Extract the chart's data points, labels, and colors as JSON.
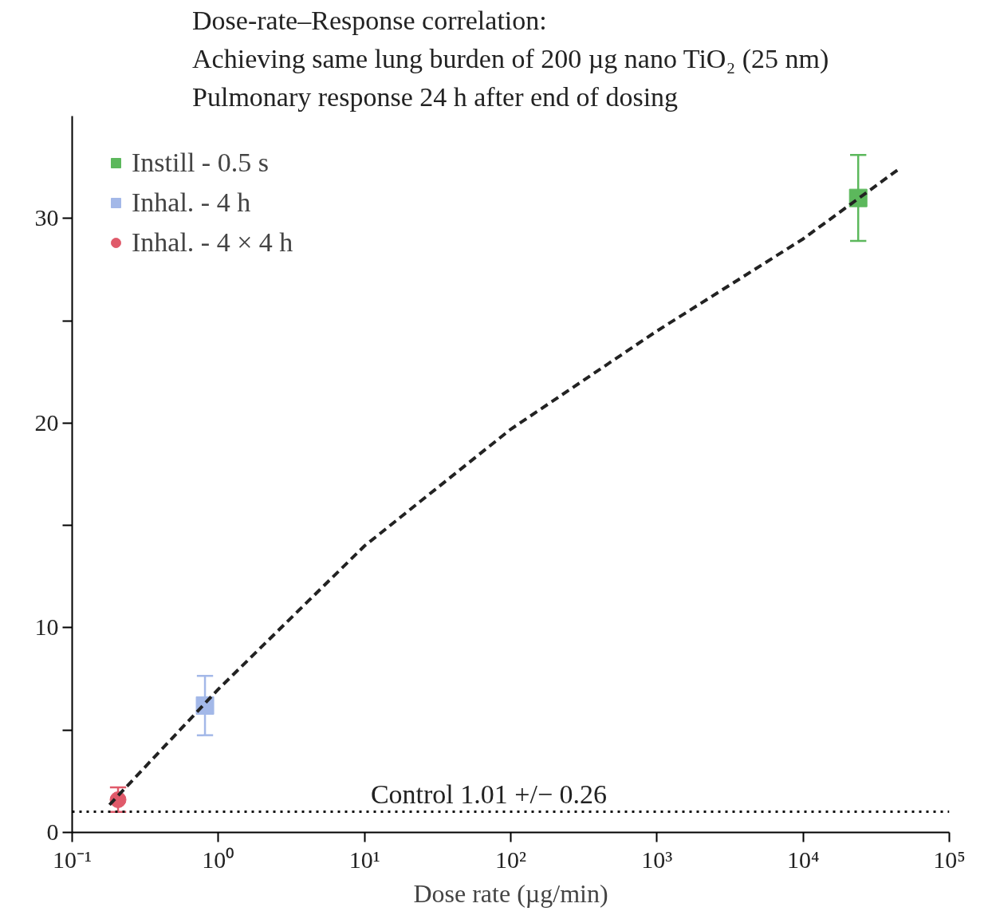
{
  "chart_data": {
    "type": "scatter",
    "title": "Dose-rate–Response correlation:\nAchieving same lung burden of 200 µg nano TiO₂ (25 nm)\nPulmonary response 24 h after end of dosing",
    "xlabel": "Dose rate (µg/min)",
    "log": "x",
    "xlim": [
      0.1,
      100000
    ],
    "xticks": [
      {
        "value": 0.1,
        "label": "10⁻¹"
      },
      {
        "value": 1,
        "label": "10⁰"
      },
      {
        "value": 10,
        "label": "10¹"
      },
      {
        "value": 100,
        "label": "10²"
      },
      {
        "value": 1000,
        "label": "10³"
      },
      {
        "value": 10000,
        "label": "10⁴"
      },
      {
        "value": 100000,
        "label": "10⁵"
      }
    ],
    "ylim": [
      0,
      35
    ],
    "yticks": [
      0,
      {
        "value": 5,
        "label": null
      },
      10,
      {
        "value": 15,
        "label": null
      },
      20,
      {
        "value": 25,
        "label": null
      },
      30
    ],
    "grid": false,
    "legend": "top left",
    "series": [
      {
        "name": "Instill - 0.5 s",
        "color": "#5cb85c",
        "marker": "square",
        "x": [
          23800
        ],
        "values": [
          31.0
        ],
        "errors": [
          2.1
        ]
      },
      {
        "name": "Inhal. - 4 h",
        "color": "#a3b8e8",
        "marker": "square",
        "x": [
          0.81
        ],
        "values": [
          6.2
        ],
        "errors": [
          1.45
        ]
      },
      {
        "name": "Inhal. - 4 × 4 h",
        "color": "#e05a6a",
        "marker": "circle",
        "x": [
          0.206
        ],
        "values": [
          1.6
        ],
        "errors": [
          0.6
        ]
      },
      {
        "type": "line",
        "color": "#222222",
        "line_style": "dashed",
        "marker": "none",
        "x": [
          0.18,
          1,
          10,
          100,
          1000,
          10000,
          44900
        ],
        "values": [
          1.35,
          7.0,
          14.0,
          19.7,
          24.5,
          29.0,
          32.4
        ]
      }
    ],
    "ref_lines": [
      {
        "axis": "y",
        "value": 1.01,
        "label": "Control 1.01 +/− 0.26",
        "color": "#111111",
        "line_style": "dotted"
      }
    ]
  }
}
